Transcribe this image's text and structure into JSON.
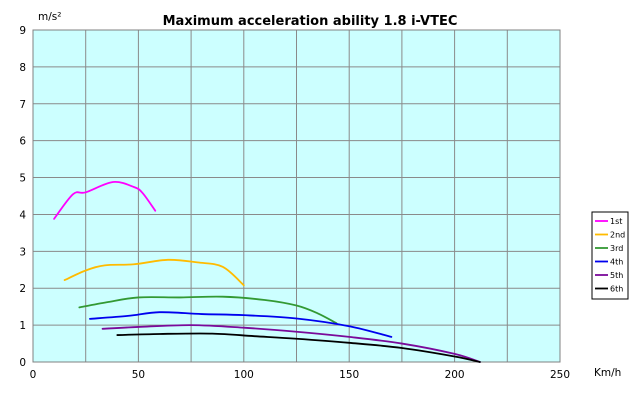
{
  "chart_data": {
    "type": "line",
    "title": "Maximum acceleration ability 1.8 i-VTEC",
    "ylabel": "m/s²",
    "xlabel": "Km/h",
    "xlim": [
      0,
      250
    ],
    "ylim": [
      0,
      9
    ],
    "xticks": [
      0,
      50,
      100,
      150,
      200,
      250
    ],
    "yticks": [
      0,
      1,
      2,
      3,
      4,
      5,
      6,
      7,
      8,
      9
    ],
    "grid": true,
    "legend_position": "right",
    "colors": {
      "plot_background": "#ccffff",
      "grid": "#8a8a8a",
      "legend_border": "#000000"
    },
    "series": [
      {
        "name": "1st",
        "color": "#ff00ff",
        "x": [
          10,
          19,
          25,
          38,
          48,
          52,
          58
        ],
        "y": [
          3.88,
          4.55,
          4.6,
          4.88,
          4.74,
          4.58,
          4.1
        ]
      },
      {
        "name": "2nd",
        "color": "#ffbb00",
        "x": [
          15,
          25,
          34,
          48,
          64,
          78,
          90,
          100
        ],
        "y": [
          2.22,
          2.48,
          2.62,
          2.65,
          2.77,
          2.7,
          2.58,
          2.08
        ]
      },
      {
        "name": "3rd",
        "color": "#339933",
        "x": [
          22,
          35,
          50,
          70,
          90,
          110,
          125,
          135,
          144
        ],
        "y": [
          1.48,
          1.62,
          1.75,
          1.75,
          1.77,
          1.68,
          1.53,
          1.32,
          1.05
        ]
      },
      {
        "name": "4th",
        "color": "#0000ee",
        "x": [
          27,
          45,
          60,
          80,
          100,
          125,
          150,
          170
        ],
        "y": [
          1.17,
          1.25,
          1.35,
          1.3,
          1.27,
          1.18,
          0.97,
          0.68
        ]
      },
      {
        "name": "5th",
        "color": "#7a0a9a",
        "x": [
          33,
          50,
          75,
          100,
          125,
          150,
          175,
          200,
          212
        ],
        "y": [
          0.9,
          0.95,
          1.0,
          0.93,
          0.82,
          0.68,
          0.5,
          0.22,
          0.0
        ]
      },
      {
        "name": "6th",
        "color": "#000000",
        "x": [
          40,
          60,
          85,
          105,
          125,
          150,
          175,
          200,
          212
        ],
        "y": [
          0.73,
          0.76,
          0.77,
          0.7,
          0.63,
          0.52,
          0.38,
          0.15,
          0.0
        ]
      }
    ]
  }
}
